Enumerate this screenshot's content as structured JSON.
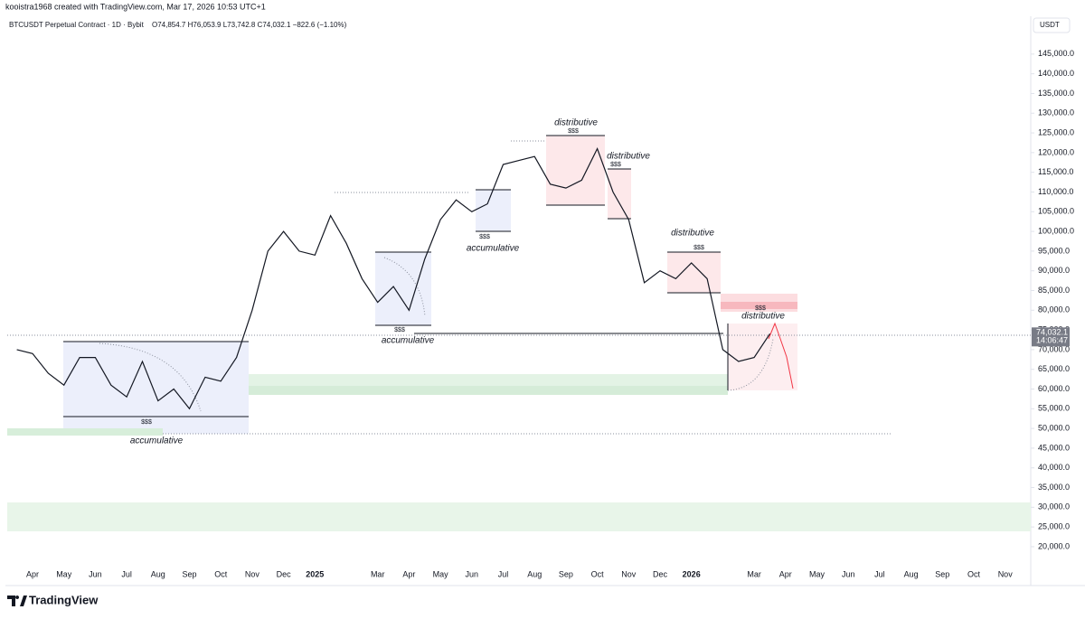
{
  "header": {
    "credit": "kooistra1968 created with TradingView.com, Mar 17, 2026 10:53 UTC+1",
    "logo": "TradingView"
  },
  "chart_data": {
    "type": "line",
    "title": "BTCUSDT Perpetual Contract · 1D · Bybit",
    "subtitle": "O74,854.7 H76,053.9 L73,742.8 C74,032.1 −822.6 (−1.10%)",
    "currency": "USDT",
    "color": "#131722",
    "grid": false,
    "categories": [
      null,
      "Apr",
      null,
      "May",
      null,
      "Jun",
      null,
      "Jul",
      null,
      "Aug",
      null,
      "Sep",
      null,
      "Oct",
      null,
      "Nov",
      null,
      "Dec",
      null,
      "2025",
      null,
      null,
      null,
      "Mar",
      null,
      "Apr",
      null,
      "May",
      null,
      "Jun",
      null,
      "Jul",
      null,
      "Aug",
      null,
      "Sep",
      null,
      "Oct",
      null,
      "Nov",
      null,
      "Dec",
      null,
      "2026",
      null,
      null,
      null,
      "Mar",
      null,
      "Apr",
      null,
      "May",
      null,
      "Jun",
      null,
      "Jul",
      null,
      "Aug",
      null,
      "Sep",
      null,
      "Oct",
      null,
      "Nov",
      null
    ],
    "values": [
      70000,
      69000,
      64000,
      61000,
      68000,
      68000,
      61000,
      58000,
      67000,
      57000,
      60000,
      55000,
      63000,
      62000,
      68000,
      80000,
      95000,
      100000,
      95000,
      94000,
      104000,
      97000,
      88000,
      82000,
      86000,
      80000,
      93000,
      103000,
      108000,
      105000,
      107000,
      117000,
      118000,
      119000,
      112000,
      111000,
      113000,
      121000,
      110000,
      103000,
      87000,
      90000,
      88000,
      92000,
      88000,
      70000,
      67000,
      68000,
      74032.1,
      null,
      null,
      null,
      null,
      null,
      null,
      null,
      null,
      null,
      null,
      null,
      null,
      null,
      null,
      null,
      null
    ],
    "last_price": {
      "value": 74032.1,
      "label": "74,032.1"
    },
    "countdown": "14:06:47",
    "ylim": [
      15400,
      154600
    ],
    "yticks": [
      {
        "value": 20000,
        "label": "20,000.0"
      },
      {
        "value": 25000,
        "label": "25,000.0"
      },
      {
        "value": 30000,
        "label": "30,000.0"
      },
      {
        "value": 35000,
        "label": "35,000.0"
      },
      {
        "value": 40000,
        "label": "40,000.0"
      },
      {
        "value": 45000,
        "label": "45,000.0"
      },
      {
        "value": 50000,
        "label": "50,000.0"
      },
      {
        "value": 55000,
        "label": "55,000.0"
      },
      {
        "value": 60000,
        "label": "60,000.0"
      },
      {
        "value": 65000,
        "label": "65,000.0"
      },
      {
        "value": 70000,
        "label": "70,000.0"
      },
      {
        "value": 75000,
        "label": "75,000.0"
      },
      {
        "value": 80000,
        "label": "80,000.0"
      },
      {
        "value": 85000,
        "label": "85,000.0"
      },
      {
        "value": 90000,
        "label": "90,000.0"
      },
      {
        "value": 95000,
        "label": "95,000.0"
      },
      {
        "value": 100000,
        "label": "100,000.0"
      },
      {
        "value": 105000,
        "label": "105,000.0"
      },
      {
        "value": 110000,
        "label": "110,000.0"
      },
      {
        "value": 115000,
        "label": "115,000.0"
      },
      {
        "value": 120000,
        "label": "120,000.0"
      },
      {
        "value": 125000,
        "label": "125,000.0"
      },
      {
        "value": 130000,
        "label": "130,000.0"
      },
      {
        "value": 135000,
        "label": "135,000.0"
      },
      {
        "value": 140000,
        "label": "140,000.0"
      },
      {
        "value": 145000,
        "label": "145,000.0"
      }
    ],
    "annotations": [
      "distributive",
      "$$$",
      "distributive",
      "$$$",
      "$$$",
      "accumulative",
      "distributive",
      "$$$",
      "$$$",
      "distributive",
      "$$$",
      "accumulative",
      "$$$",
      "accumulative"
    ]
  }
}
